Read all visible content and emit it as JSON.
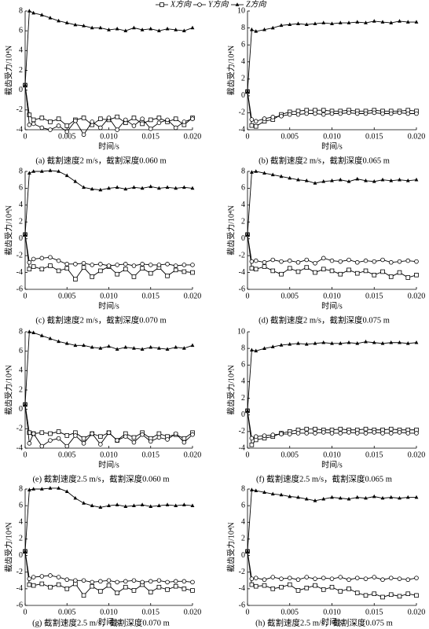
{
  "legend": [
    {
      "name": "X方向",
      "marker": "square",
      "color": "#000000"
    },
    {
      "name": "Y方向",
      "marker": "circle",
      "color": "#000000"
    },
    {
      "name": "Z方向",
      "marker": "triangle",
      "color": "#000000"
    }
  ],
  "chart_data": [
    {
      "type": "line",
      "caption": "(a)  截割速度2 m/s，截割深度0.060 m",
      "xlabel": "时间/s",
      "ylabel": "截齿受力/10⁴N",
      "xlim": [
        0,
        0.02
      ],
      "ylim": [
        -4,
        8
      ],
      "yticks": [
        -4,
        -2,
        0,
        2,
        4,
        6,
        8
      ],
      "xticks": [
        0,
        0.005,
        {
          "value": 0.01,
          "label": "0.010"
        },
        0.015,
        {
          "value": 0.02,
          "label": "0.020"
        }
      ],
      "x": [
        0,
        0.0005,
        0.001,
        0.002,
        0.003,
        0.004,
        0.005,
        0.006,
        0.007,
        0.008,
        0.009,
        0.01,
        0.011,
        0.012,
        0.013,
        0.014,
        0.015,
        0.016,
        0.017,
        0.018,
        0.019,
        0.02
      ],
      "series": [
        {
          "marker": "square",
          "values": [
            0.5,
            -2.5,
            -3.0,
            -2.8,
            -3.2,
            -2.9,
            -3.6,
            -3.0,
            -2.8,
            -3.5,
            -2.9,
            -3.0,
            -2.7,
            -3.3,
            -2.8,
            -3.4,
            -3.0,
            -2.8,
            -3.2,
            -2.9,
            -3.5,
            -2.8
          ]
        },
        {
          "marker": "circle",
          "values": [
            0.5,
            -3.5,
            -3.4,
            -3.8,
            -4.0,
            -3.6,
            -4.2,
            -3.1,
            -4.5,
            -3.2,
            -3.8,
            -2.8,
            -4.0,
            -3.0,
            -3.6,
            -2.9,
            -3.9,
            -3.3,
            -3.0,
            -3.8,
            -3.2,
            -2.9
          ]
        },
        {
          "marker": "triangle",
          "values": [
            0.5,
            8.0,
            7.8,
            7.6,
            7.3,
            7.0,
            6.8,
            6.6,
            6.5,
            6.3,
            6.3,
            6.1,
            6.2,
            6.0,
            6.3,
            6.1,
            6.2,
            6.0,
            6.2,
            6.1,
            6.0,
            6.3
          ]
        }
      ]
    },
    {
      "type": "line",
      "caption": "(b)  截割速度2 m/s，截割深度0.065 m",
      "xlabel": "时间/s",
      "ylabel": "截齿受力/10⁴N",
      "xlim": [
        0,
        0.02
      ],
      "ylim": [
        -4,
        10
      ],
      "yticks": [
        -4,
        -2,
        0,
        2,
        4,
        6,
        8,
        10
      ],
      "xticks": [
        0,
        0.005,
        {
          "value": 0.01,
          "label": "0.010"
        },
        0.015,
        {
          "value": 0.02,
          "label": "0.020"
        }
      ],
      "x": [
        0,
        0.0005,
        0.001,
        0.002,
        0.003,
        0.004,
        0.005,
        0.006,
        0.007,
        0.008,
        0.009,
        0.01,
        0.011,
        0.012,
        0.013,
        0.014,
        0.015,
        0.016,
        0.017,
        0.018,
        0.019,
        0.02
      ],
      "series": [
        {
          "marker": "square",
          "values": [
            0.5,
            -3.5,
            -3.6,
            -3.0,
            -2.8,
            -2.2,
            -1.9,
            -1.8,
            -1.7,
            -1.7,
            -1.7,
            -1.8,
            -1.8,
            -1.7,
            -1.8,
            -1.8,
            -1.7,
            -1.8,
            -1.8,
            -1.8,
            -1.7,
            -1.8
          ]
        },
        {
          "marker": "circle",
          "values": [
            0.5,
            -2.8,
            -3.0,
            -2.7,
            -2.5,
            -2.4,
            -2.2,
            -2.2,
            -2.1,
            -2.1,
            -2.2,
            -2.1,
            -2.1,
            -2.0,
            -2.1,
            -2.1,
            -2.0,
            -2.1,
            -2.1,
            -2.0,
            -2.1,
            -2.1
          ]
        },
        {
          "marker": "triangle",
          "values": [
            0.5,
            7.8,
            7.6,
            7.8,
            8.0,
            8.3,
            8.4,
            8.5,
            8.4,
            8.5,
            8.6,
            8.5,
            8.6,
            8.6,
            8.7,
            8.6,
            8.8,
            8.7,
            8.6,
            8.8,
            8.7,
            8.7
          ]
        }
      ]
    },
    {
      "type": "line",
      "caption": "(c)  截割速度2 m/s，截割深度0.070 m",
      "xlabel": "时间/s",
      "ylabel": "截齿受力/10⁴N",
      "xlim": [
        0,
        0.02
      ],
      "ylim": [
        -6,
        8
      ],
      "yticks": [
        -6,
        -4,
        -2,
        0,
        2,
        4,
        6,
        8
      ],
      "xticks": [
        0,
        0.005,
        {
          "value": 0.01,
          "label": "0.010"
        },
        0.015,
        {
          "value": 0.02,
          "label": "0.020"
        }
      ],
      "x": [
        0,
        0.0005,
        0.001,
        0.002,
        0.003,
        0.004,
        0.005,
        0.006,
        0.007,
        0.008,
        0.009,
        0.01,
        0.011,
        0.012,
        0.013,
        0.014,
        0.015,
        0.016,
        0.017,
        0.018,
        0.019,
        0.02
      ],
      "series": [
        {
          "marker": "square",
          "values": [
            0.5,
            -3.6,
            -3.3,
            -3.6,
            -3.2,
            -3.8,
            -3.5,
            -4.8,
            -3.4,
            -4.5,
            -3.8,
            -3.3,
            -4.2,
            -3.6,
            -4.5,
            -3.5,
            -4.1,
            -3.4,
            -4.4,
            -3.7,
            -3.9,
            -4.0
          ]
        },
        {
          "marker": "circle",
          "values": [
            0.5,
            -2.8,
            -2.4,
            -2.3,
            -2.2,
            -2.6,
            -3.0,
            -3.0,
            -2.9,
            -3.1,
            -3.0,
            -3.2,
            -3.1,
            -3.0,
            -3.2,
            -3.0,
            -3.1,
            -3.1,
            -3.0,
            -3.2,
            -3.1,
            -3.1
          ]
        },
        {
          "marker": "triangle",
          "values": [
            0.5,
            7.8,
            8.0,
            8.0,
            8.1,
            8.0,
            7.5,
            6.8,
            6.1,
            5.9,
            5.8,
            6.0,
            6.1,
            5.9,
            6.1,
            6.0,
            6.2,
            6.0,
            6.1,
            6.0,
            6.1,
            6.0
          ]
        }
      ]
    },
    {
      "type": "line",
      "caption": "(d)  截割速度2 m/s，截割深度0.075 m",
      "xlabel": "时间/s",
      "ylabel": "截齿受力/10⁴N",
      "xlim": [
        0,
        0.02
      ],
      "ylim": [
        -6,
        8
      ],
      "yticks": [
        -6,
        -4,
        -2,
        0,
        2,
        4,
        6,
        8
      ],
      "xticks": [
        0,
        0.005,
        {
          "value": 0.01,
          "label": "0.010"
        },
        0.015,
        {
          "value": 0.02,
          "label": "0.020"
        }
      ],
      "x": [
        0,
        0.0005,
        0.001,
        0.002,
        0.003,
        0.004,
        0.005,
        0.006,
        0.007,
        0.008,
        0.009,
        0.01,
        0.011,
        0.012,
        0.013,
        0.014,
        0.015,
        0.016,
        0.017,
        0.018,
        0.019,
        0.02
      ],
      "series": [
        {
          "marker": "square",
          "values": [
            0.5,
            -3.5,
            -3.6,
            -3.3,
            -3.8,
            -4.2,
            -3.5,
            -3.9,
            -3.4,
            -4.0,
            -3.6,
            -3.8,
            -4.2,
            -3.7,
            -4.1,
            -3.8,
            -4.3,
            -3.9,
            -4.5,
            -4.0,
            -4.6,
            -4.3
          ]
        },
        {
          "marker": "circle",
          "values": [
            0.5,
            -2.7,
            -2.6,
            -2.8,
            -2.5,
            -2.7,
            -2.6,
            -2.8,
            -2.5,
            -2.9,
            -2.3,
            -2.6,
            -2.7,
            -2.5,
            -2.8,
            -2.6,
            -2.7,
            -2.5,
            -2.8,
            -2.7,
            -2.6,
            -2.7
          ]
        },
        {
          "marker": "triangle",
          "values": [
            0.5,
            7.9,
            8.0,
            7.8,
            7.6,
            7.4,
            7.2,
            7.0,
            6.9,
            6.6,
            6.8,
            6.9,
            7.0,
            6.8,
            7.1,
            6.9,
            6.8,
            7.0,
            6.9,
            7.0,
            6.9,
            7.0
          ]
        }
      ]
    },
    {
      "type": "line",
      "caption": "(e)  截割速度2.5 m/s，截割深度0.060 m",
      "xlabel": "时间/s",
      "ylabel": "截齿受力/10⁴N",
      "xlim": [
        0,
        0.02
      ],
      "ylim": [
        -4,
        8
      ],
      "yticks": [
        -4,
        -2,
        0,
        2,
        4,
        6,
        8
      ],
      "xticks": [
        0,
        0.005,
        {
          "value": 0.01,
          "label": "0.010"
        },
        0.015,
        {
          "value": 0.02,
          "label": "0.020"
        }
      ],
      "x": [
        0,
        0.0005,
        0.001,
        0.002,
        0.003,
        0.004,
        0.005,
        0.006,
        0.007,
        0.008,
        0.009,
        0.01,
        0.011,
        0.012,
        0.013,
        0.014,
        0.015,
        0.016,
        0.017,
        0.018,
        0.019,
        0.02
      ],
      "series": [
        {
          "marker": "square",
          "values": [
            0.5,
            -2.4,
            -2.5,
            -2.4,
            -2.5,
            -2.3,
            -2.7,
            -2.4,
            -3.0,
            -2.5,
            -2.8,
            -2.4,
            -3.2,
            -2.5,
            -2.9,
            -2.4,
            -3.0,
            -2.5,
            -2.8,
            -2.6,
            -3.0,
            -2.4
          ]
        },
        {
          "marker": "circle",
          "values": [
            0.5,
            -3.5,
            -2.5,
            -3.8,
            -3.2,
            -3.0,
            -3.8,
            -2.7,
            -3.5,
            -2.5,
            -3.6,
            -2.4,
            -3.2,
            -2.8,
            -3.4,
            -2.6,
            -3.3,
            -2.9,
            -3.1,
            -2.5,
            -3.4,
            -2.6
          ]
        },
        {
          "marker": "triangle",
          "values": [
            0.5,
            8.0,
            7.9,
            7.6,
            7.3,
            7.0,
            6.8,
            6.6,
            6.6,
            6.4,
            6.3,
            6.5,
            6.2,
            6.4,
            6.3,
            6.2,
            6.4,
            6.3,
            6.2,
            6.4,
            6.3,
            6.6
          ]
        }
      ]
    },
    {
      "type": "line",
      "caption": "(f)  截割速度2.5 m/s，截割深度0.065 m",
      "xlabel": "时间/s",
      "ylabel": "截齿受力/10⁴N",
      "xlim": [
        0,
        0.02
      ],
      "ylim": [
        -4,
        10
      ],
      "yticks": [
        -4,
        -2,
        0,
        2,
        4,
        6,
        8,
        10
      ],
      "xticks": [
        0,
        0.005,
        {
          "value": 0.01,
          "label": "0.010"
        },
        0.015,
        {
          "value": 0.02,
          "label": "0.020"
        }
      ],
      "x": [
        0,
        0.0005,
        0.001,
        0.002,
        0.003,
        0.004,
        0.005,
        0.006,
        0.007,
        0.008,
        0.009,
        0.01,
        0.011,
        0.012,
        0.013,
        0.014,
        0.015,
        0.016,
        0.017,
        0.018,
        0.019,
        0.02
      ],
      "series": [
        {
          "marker": "square",
          "values": [
            0.5,
            -3.6,
            -3.0,
            -2.8,
            -2.6,
            -2.2,
            -2.0,
            -1.8,
            -1.7,
            -1.7,
            -1.8,
            -1.8,
            -1.7,
            -1.8,
            -1.8,
            -1.7,
            -1.8,
            -1.8,
            -1.7,
            -1.8,
            -1.8,
            -1.8
          ]
        },
        {
          "marker": "circle",
          "values": [
            0.5,
            -2.8,
            -2.6,
            -2.5,
            -2.4,
            -2.3,
            -2.3,
            -2.2,
            -2.2,
            -2.2,
            -2.1,
            -2.2,
            -2.2,
            -2.1,
            -2.2,
            -2.2,
            -2.1,
            -2.2,
            -2.2,
            -2.1,
            -2.2,
            -2.2
          ]
        },
        {
          "marker": "triangle",
          "values": [
            0.5,
            7.8,
            7.7,
            8.0,
            8.2,
            8.4,
            8.5,
            8.6,
            8.5,
            8.6,
            8.7,
            8.6,
            8.6,
            8.7,
            8.6,
            8.8,
            8.7,
            8.6,
            8.7,
            8.7,
            8.6,
            8.7
          ]
        }
      ]
    },
    {
      "type": "line",
      "caption": "(g)  截割速度2.5 m/s，截割深度0.070 m",
      "xlabel": "时间/s",
      "ylabel": "截齿受力/10⁴N",
      "xlim": [
        0,
        0.02
      ],
      "ylim": [
        -6,
        8
      ],
      "yticks": [
        -6,
        -4,
        -2,
        0,
        2,
        4,
        6,
        8
      ],
      "xticks": [
        0,
        0.005,
        {
          "value": 0.01,
          "label": "0.010"
        },
        0.015,
        {
          "value": 0.02,
          "label": "0.020"
        }
      ],
      "x": [
        0,
        0.0005,
        0.001,
        0.002,
        0.003,
        0.004,
        0.005,
        0.006,
        0.007,
        0.008,
        0.009,
        0.01,
        0.011,
        0.012,
        0.013,
        0.014,
        0.015,
        0.016,
        0.017,
        0.018,
        0.019,
        0.02
      ],
      "series": [
        {
          "marker": "square",
          "values": [
            0.5,
            -3.5,
            -3.6,
            -3.4,
            -3.8,
            -3.5,
            -4.0,
            -3.4,
            -4.8,
            -3.7,
            -4.3,
            -3.6,
            -4.5,
            -3.8,
            -4.2,
            -3.5,
            -4.4,
            -3.8,
            -4.1,
            -3.7,
            -4.0,
            -4.2
          ]
        },
        {
          "marker": "circle",
          "values": [
            0.5,
            -2.8,
            -2.6,
            -2.5,
            -2.4,
            -2.6,
            -2.9,
            -3.0,
            -3.0,
            -3.2,
            -3.1,
            -3.0,
            -3.2,
            -3.1,
            -3.0,
            -3.2,
            -3.1,
            -3.0,
            -3.2,
            -3.1,
            -3.1,
            -3.2
          ]
        },
        {
          "marker": "triangle",
          "values": [
            0.5,
            7.9,
            8.0,
            8.0,
            8.1,
            8.1,
            7.7,
            6.9,
            6.3,
            6.0,
            5.8,
            6.0,
            6.1,
            5.9,
            6.0,
            6.1,
            5.9,
            6.0,
            6.1,
            6.0,
            6.1,
            6.0
          ]
        }
      ]
    },
    {
      "type": "line",
      "caption": "(h)  截割速度2.5 m/s，截割深度0.075 m",
      "xlabel": "时间/s",
      "ylabel": "截齿受力/10⁴N",
      "xlim": [
        0,
        0.02
      ],
      "ylim": [
        -6,
        8
      ],
      "yticks": [
        -6,
        -4,
        -2,
        0,
        2,
        4,
        6,
        8
      ],
      "xticks": [
        0,
        0.005,
        {
          "value": 0.01,
          "label": "0.010"
        },
        0.015,
        {
          "value": 0.02,
          "label": "0.020"
        }
      ],
      "x": [
        0,
        0.0005,
        0.001,
        0.002,
        0.003,
        0.004,
        0.005,
        0.006,
        0.007,
        0.008,
        0.009,
        0.01,
        0.011,
        0.012,
        0.013,
        0.014,
        0.015,
        0.016,
        0.017,
        0.018,
        0.019,
        0.02
      ],
      "series": [
        {
          "marker": "square",
          "values": [
            0.5,
            -3.5,
            -3.7,
            -3.6,
            -4.0,
            -3.8,
            -3.5,
            -4.2,
            -3.9,
            -3.6,
            -4.1,
            -3.8,
            -4.3,
            -4.0,
            -4.5,
            -4.8,
            -4.6,
            -5.0,
            -4.7,
            -4.9,
            -4.6,
            -4.8
          ]
        },
        {
          "marker": "circle",
          "values": [
            0.5,
            -2.8,
            -2.7,
            -2.9,
            -2.6,
            -2.8,
            -2.7,
            -2.9,
            -2.6,
            -2.8,
            -2.7,
            -2.8,
            -2.6,
            -2.9,
            -2.7,
            -2.8,
            -2.6,
            -2.9,
            -2.7,
            -2.8,
            -2.9,
            -2.7
          ]
        },
        {
          "marker": "triangle",
          "values": [
            0.5,
            7.9,
            7.8,
            7.6,
            7.4,
            7.3,
            7.1,
            7.0,
            6.8,
            6.6,
            6.8,
            7.0,
            6.9,
            6.8,
            7.0,
            6.9,
            7.1,
            6.9,
            7.0,
            6.9,
            7.0,
            7.0
          ]
        }
      ]
    }
  ]
}
